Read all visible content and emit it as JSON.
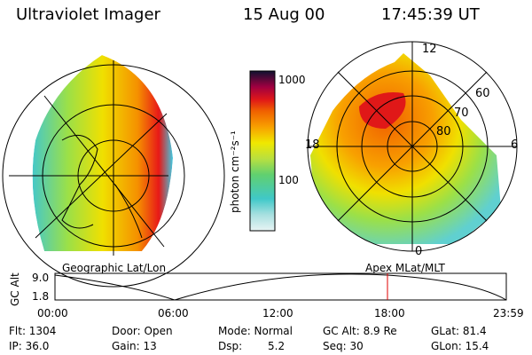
{
  "header": {
    "instrument": "Ultraviolet Imager",
    "date": "15 Aug 00",
    "time": "17:45:39 UT"
  },
  "colorbar": {
    "unit_label": "photon cm⁻²s⁻¹",
    "ticks": [
      "1000",
      "100"
    ]
  },
  "polar_plot": {
    "mlt_labels": [
      "12",
      "18",
      "6",
      "0"
    ],
    "lat_labels": [
      "60",
      "70",
      "80"
    ]
  },
  "captions": {
    "left": "Geographic Lat/Lon",
    "right": "Apex  MLat/MLT"
  },
  "altitude_plot": {
    "ylabel": "GC Alt",
    "ytick_top": "9.0",
    "ytick_bottom": "1.8",
    "xticks": [
      "00:00",
      "06:00",
      "12:00",
      "18:00",
      "23:59"
    ],
    "marker_color": "#e00000"
  },
  "info": {
    "flt": "Flt: 1304",
    "ip": "IP: 36.0",
    "door": "Door: Open",
    "gain": "Gain: 13",
    "mode": "Mode: Normal",
    "dsp_label": "Dsp:",
    "dsp_value": "5.2",
    "gc_alt": "GC Alt: 8.9 Re",
    "seq": "Seq: 30",
    "glat": "GLat:  81.4",
    "glon": "GLon:  15.4"
  }
}
